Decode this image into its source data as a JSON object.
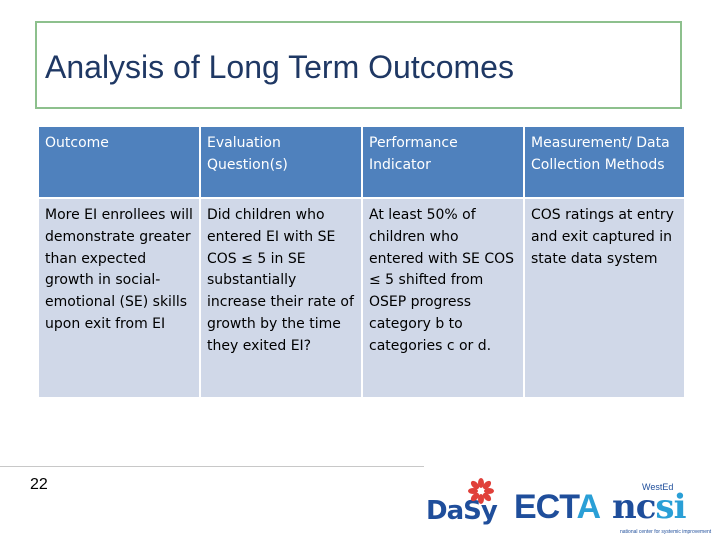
{
  "slide": {
    "title": "Analysis of Long Term Outcomes",
    "page_number": "22"
  },
  "table": {
    "headers": [
      "Outcome",
      "Evaluation Question(s)",
      "Performance Indicator",
      "Measurement/ Data Collection Methods"
    ],
    "row": [
      "More EI enrollees will demonstrate greater than expected growth in social-emotional (SE) skills upon exit from EI",
      "Did children who entered EI with SE COS ≤ 5 in SE substantially increase their rate of growth by the time they exited EI?",
      "At least 50% of children who entered with SE COS ≤ 5 shifted from OSEP progress category b to categories c or d.",
      "COS ratings at entry and exit captured in state data system"
    ]
  },
  "logos": {
    "dasy": "DaSy",
    "ecta_ect": "ECT",
    "ecta_a": "A",
    "westedj": "WestEd",
    "ncsi_nc": "nc",
    "ncsi_si": "si",
    "ncsi_sub": "national center for systemic improvement"
  },
  "colors": {
    "header_bg": "#4f81bd",
    "body_bg": "#d0d8e8",
    "title_color": "#1f3864",
    "title_border": "#8dc08d"
  }
}
